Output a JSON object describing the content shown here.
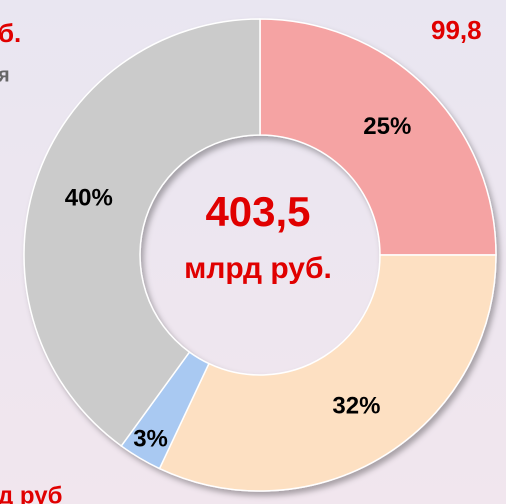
{
  "chart_data": {
    "type": "donut",
    "categories": [
      null,
      null,
      null,
      null
    ],
    "values": [
      25,
      32,
      3,
      40
    ],
    "value_labels": [
      "25%",
      "32%",
      "3%",
      "40%"
    ],
    "colors": [
      "#f5a3a3",
      "#fde0c2",
      "#a9c9f2",
      "#cbcbcb"
    ],
    "center_text": [
      "403,5",
      "млрд руб."
    ],
    "annotations": [
      "99,8",
      "б.",
      "я",
      "д руб"
    ]
  }
}
